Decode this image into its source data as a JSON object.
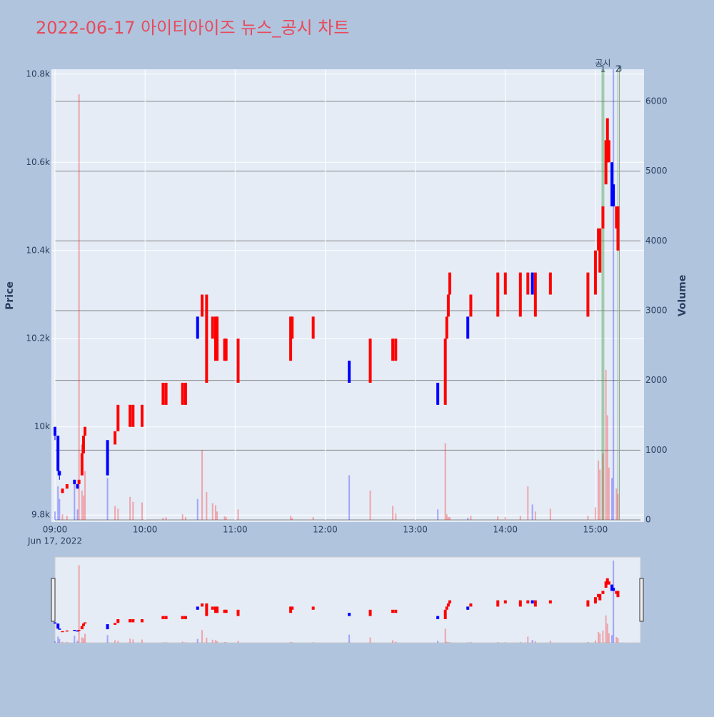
{
  "chart_data": {
    "type": "candlestick",
    "title": "2022-06-17 아이티아이즈 뉴스_공시 차트",
    "y_label": "Price",
    "y2_label": "Volume",
    "x_date_label": "Jun 17, 2022",
    "increasing_color": "#ff0000",
    "decreasing_color": "#0000ff",
    "xlim": [
      "09:00",
      "15:30"
    ],
    "xticks": [
      "09:00",
      "10:00",
      "11:00",
      "12:00",
      "13:00",
      "14:00",
      "15:00"
    ],
    "ylim": [
      9789,
      10811
    ],
    "yticks": [
      {
        "value": 9800,
        "label": "9.8k"
      },
      {
        "value": 10000,
        "label": "10k"
      },
      {
        "value": 10200,
        "label": "10.2k"
      },
      {
        "value": 10400,
        "label": "10.4k"
      },
      {
        "value": 10600,
        "label": "10.6k"
      },
      {
        "value": 10800,
        "label": "10.8k"
      }
    ],
    "y2lim": [
      0,
      6460
    ],
    "y2ticks": [
      0,
      1000,
      2000,
      3000,
      4000,
      5000,
      6000
    ],
    "annotation_title": "공시",
    "annotations": [
      {
        "x": "15:05",
        "label": "1"
      },
      {
        "x": "15:15",
        "label": "2"
      },
      {
        "x": "15:16",
        "label": "3"
      }
    ],
    "x": [
      "09:00",
      "09:02",
      "09:03",
      "09:05",
      "09:08",
      "09:13",
      "09:15",
      "09:16",
      "09:18",
      "09:19",
      "09:20",
      "09:35",
      "09:40",
      "09:42",
      "09:50",
      "09:52",
      "09:58",
      "10:12",
      "10:14",
      "10:25",
      "10:27",
      "10:35",
      "10:38",
      "10:41",
      "10:45",
      "10:47",
      "10:48",
      "10:53",
      "10:54",
      "11:02",
      "11:37",
      "11:38",
      "11:52",
      "12:16",
      "12:30",
      "12:45",
      "12:47",
      "13:15",
      "13:20",
      "13:21",
      "13:22",
      "13:23",
      "13:35",
      "13:37",
      "13:55",
      "14:00",
      "14:10",
      "14:15",
      "14:18",
      "14:20",
      "14:30",
      "14:55",
      "15:00",
      "15:02",
      "15:03",
      "15:05",
      "15:07",
      "15:08",
      "15:09",
      "15:11",
      "15:12",
      "15:14",
      "15:15"
    ],
    "open": [
      10000,
      9980,
      9900,
      9850,
      9860,
      9880,
      9870,
      9870,
      9890,
      9940,
      9980,
      9970,
      9960,
      9990,
      10000,
      10000,
      10000,
      10050,
      10050,
      10050,
      10050,
      10250,
      10250,
      10100,
      10200,
      10150,
      10150,
      10150,
      10150,
      10100,
      10150,
      10200,
      10200,
      10150,
      10100,
      10150,
      10150,
      10100,
      10050,
      10200,
      10250,
      10300,
      10250,
      10250,
      10250,
      10300,
      10250,
      10300,
      10350,
      10250,
      10300,
      10250,
      10300,
      10400,
      10350,
      10450,
      10550,
      10600,
      10600,
      10600,
      10550,
      10450,
      10400
    ],
    "high": [
      10000,
      9980,
      9900,
      9860,
      9870,
      9880,
      9870,
      9880,
      9960,
      9980,
      10000,
      9970,
      9990,
      10050,
      10050,
      10050,
      10050,
      10100,
      10100,
      10100,
      10100,
      10250,
      10300,
      10300,
      10250,
      10250,
      10250,
      10200,
      10200,
      10200,
      10250,
      10250,
      10250,
      10150,
      10200,
      10200,
      10200,
      10100,
      10200,
      10250,
      10300,
      10350,
      10250,
      10300,
      10350,
      10350,
      10350,
      10350,
      10350,
      10350,
      10350,
      10350,
      10400,
      10450,
      10450,
      10500,
      10650,
      10700,
      10650,
      10600,
      10550,
      10500,
      10500
    ],
    "low": [
      9970,
      9890,
      9880,
      9850,
      9860,
      9870,
      9860,
      9870,
      9890,
      9940,
      9980,
      9890,
      9960,
      9990,
      10000,
      10000,
      10000,
      10050,
      10050,
      10050,
      10050,
      10200,
      10250,
      10100,
      10200,
      10150,
      10150,
      10150,
      10150,
      10100,
      10150,
      10200,
      10200,
      10100,
      10100,
      10150,
      10150,
      10050,
      10050,
      10200,
      10250,
      10300,
      10200,
      10250,
      10250,
      10300,
      10250,
      10300,
      10300,
      10250,
      10300,
      10250,
      10300,
      10400,
      10350,
      10450,
      10550,
      10600,
      10600,
      10500,
      10500,
      10450,
      10400
    ],
    "close": [
      9980,
      9900,
      9890,
      9860,
      9870,
      9870,
      9860,
      9880,
      9940,
      9980,
      10000,
      9890,
      9990,
      10050,
      10050,
      10050,
      10050,
      10100,
      10100,
      10100,
      10100,
      10200,
      10300,
      10300,
      10250,
      10250,
      10250,
      10200,
      10200,
      10200,
      10250,
      10250,
      10250,
      10100,
      10200,
      10200,
      10200,
      10050,
      10200,
      10250,
      10300,
      10350,
      10200,
      10300,
      10350,
      10350,
      10350,
      10350,
      10300,
      10350,
      10350,
      10350,
      10400,
      10450,
      10450,
      10500,
      10650,
      10700,
      10650,
      10500,
      10500,
      10500,
      10500
    ],
    "volume": [
      120,
      480,
      300,
      80,
      60,
      560,
      150,
      6100,
      420,
      350,
      700,
      600,
      200,
      160,
      330,
      260,
      250,
      30,
      40,
      80,
      40,
      300,
      1000,
      400,
      240,
      210,
      120,
      50,
      40,
      150,
      60,
      30,
      40,
      640,
      420,
      200,
      90,
      150,
      1100,
      80,
      40,
      40,
      30,
      60,
      50,
      40,
      60,
      480,
      220,
      120,
      160,
      60,
      180,
      850,
      720,
      950,
      2150,
      1500,
      750,
      600,
      6460,
      450,
      370
    ]
  }
}
